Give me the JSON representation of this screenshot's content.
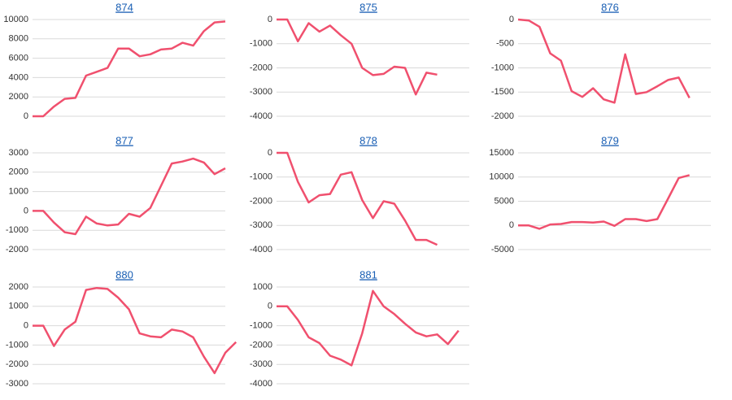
{
  "chart_data": [
    {
      "type": "line",
      "title": "874",
      "color": "#f0506e",
      "grid": true,
      "ylim": [
        0,
        10000
      ],
      "yticks": [
        0,
        2000,
        4000,
        6000,
        8000,
        10000
      ],
      "values": [
        0,
        0,
        1000,
        1800,
        1900,
        4200,
        4600,
        5000,
        7000,
        7000,
        6200,
        6400,
        6900,
        7000,
        7600,
        7300,
        8800,
        9700,
        9800
      ]
    },
    {
      "type": "line",
      "title": "875",
      "color": "#f0506e",
      "grid": true,
      "ylim": [
        -4000,
        0
      ],
      "yticks": [
        -4000,
        -3000,
        -2000,
        -1000,
        0
      ],
      "values": [
        0,
        0,
        -900,
        -150,
        -500,
        -250,
        -650,
        -1000,
        -2000,
        -2300,
        -2250,
        -1950,
        -2000,
        -3100,
        -2200,
        -2280
      ]
    },
    {
      "type": "line",
      "title": "876",
      "color": "#f0506e",
      "grid": true,
      "ylim": [
        -2000,
        0
      ],
      "yticks": [
        -2000,
        -1500,
        -1000,
        -500,
        0
      ],
      "values": [
        0,
        -20,
        -150,
        -700,
        -850,
        -1480,
        -1600,
        -1420,
        -1650,
        -1720,
        -720,
        -1540,
        -1500,
        -1380,
        -1250,
        -1200,
        -1620
      ]
    },
    {
      "type": "line",
      "title": "877",
      "color": "#f0506e",
      "grid": true,
      "ylim": [
        -2000,
        3000
      ],
      "yticks": [
        -2000,
        -1000,
        0,
        1000,
        2000,
        3000
      ],
      "values": [
        0,
        0,
        -600,
        -1100,
        -1200,
        -300,
        -650,
        -750,
        -700,
        -150,
        -300,
        150,
        1300,
        2450,
        2550,
        2700,
        2500,
        1900,
        2200
      ]
    },
    {
      "type": "line",
      "title": "878",
      "color": "#f0506e",
      "grid": true,
      "ylim": [
        -4000,
        0
      ],
      "yticks": [
        -4000,
        -3000,
        -2000,
        -1000,
        0
      ],
      "values": [
        0,
        0,
        -1200,
        -2050,
        -1750,
        -1700,
        -900,
        -800,
        -1950,
        -2700,
        -2000,
        -2100,
        -2800,
        -3600,
        -3600,
        -3800
      ]
    },
    {
      "type": "line",
      "title": "879",
      "color": "#f0506e",
      "grid": true,
      "ylim": [
        -5000,
        15000
      ],
      "yticks": [
        -5000,
        0,
        5000,
        10000,
        15000
      ],
      "values": [
        0,
        0,
        -700,
        200,
        300,
        700,
        700,
        600,
        800,
        -100,
        1300,
        1300,
        900,
        1300,
        5500,
        9800,
        10400
      ]
    },
    {
      "type": "line",
      "title": "880",
      "color": "#f0506e",
      "grid": true,
      "ylim": [
        -3000,
        2000
      ],
      "yticks": [
        -3000,
        -2000,
        -1000,
        0,
        1000,
        2000
      ],
      "values": [
        0,
        0,
        -1050,
        -200,
        200,
        1850,
        1950,
        1900,
        1450,
        850,
        -400,
        -550,
        -600,
        -200,
        -300,
        -600,
        -1600,
        -2450,
        -1400,
        -850
      ]
    },
    {
      "type": "line",
      "title": "881",
      "color": "#f0506e",
      "grid": true,
      "ylim": [
        -4000,
        1000
      ],
      "yticks": [
        -4000,
        -3000,
        -2000,
        -1000,
        0,
        1000
      ],
      "values": [
        0,
        0,
        -700,
        -1600,
        -1900,
        -2550,
        -2750,
        -3050,
        -1400,
        800,
        0,
        -400,
        -900,
        -1350,
        -1550,
        -1450,
        -1950,
        -1250
      ]
    }
  ]
}
